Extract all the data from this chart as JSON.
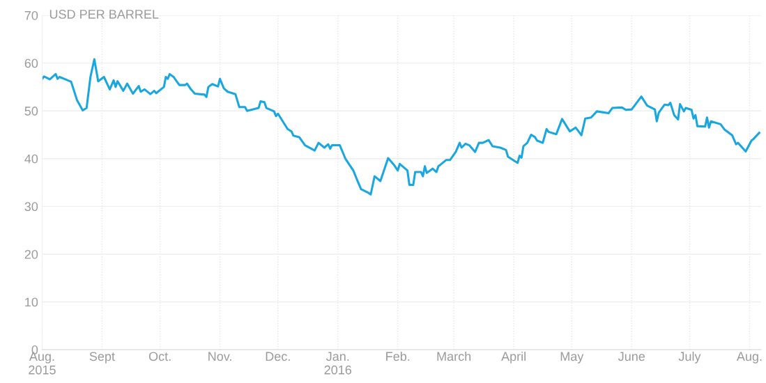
{
  "chart_data": {
    "type": "line",
    "ylabel": "USD PER BARREL",
    "x": [
      "2015-08-01",
      "2015-08-02",
      "2015-08-05",
      "2015-08-08",
      "2015-08-09",
      "2015-08-10",
      "2015-08-13",
      "2015-08-16",
      "2015-08-19",
      "2015-08-22",
      "2015-08-24",
      "2015-08-26",
      "2015-08-28",
      "2015-08-30",
      "2015-09-02",
      "2015-09-05",
      "2015-09-07",
      "2015-09-08",
      "2015-09-09",
      "2015-09-12",
      "2015-09-14",
      "2015-09-17",
      "2015-09-20",
      "2015-09-21",
      "2015-09-23",
      "2015-09-26",
      "2015-09-28",
      "2015-09-29",
      "2015-10-03",
      "2015-10-04",
      "2015-10-05",
      "2015-10-06",
      "2015-10-08",
      "2015-10-11",
      "2015-10-14",
      "2015-10-15",
      "2015-10-17",
      "2015-10-19",
      "2015-10-24",
      "2015-10-25",
      "2015-10-26",
      "2015-10-28",
      "2015-10-31",
      "2015-11-01",
      "2015-11-03",
      "2015-11-05",
      "2015-11-09",
      "2015-11-11",
      "2015-11-14",
      "2015-11-15",
      "2015-11-21",
      "2015-11-22",
      "2015-11-24",
      "2015-11-25",
      "2015-11-29",
      "2015-11-30",
      "2015-12-01",
      "2015-12-06",
      "2015-12-08",
      "2015-12-09",
      "2015-12-12",
      "2015-12-15",
      "2015-12-20",
      "2015-12-22",
      "2015-12-25",
      "2015-12-27",
      "2015-12-28",
      "2015-12-29",
      "2016-01-02",
      "2016-01-05",
      "2016-01-09",
      "2016-01-11",
      "2016-01-13",
      "2016-01-17",
      "2016-01-18",
      "2016-01-20",
      "2016-01-23",
      "2016-01-27",
      "2016-01-30",
      "2016-02-01",
      "2016-02-02",
      "2016-02-06",
      "2016-02-07",
      "2016-02-09",
      "2016-02-10",
      "2016-02-13",
      "2016-02-14",
      "2016-02-15",
      "2016-02-16",
      "2016-02-19",
      "2016-02-21",
      "2016-02-22",
      "2016-02-23",
      "2016-02-26",
      "2016-02-28",
      "2016-03-02",
      "2016-03-04",
      "2016-03-05",
      "2016-03-07",
      "2016-03-09",
      "2016-03-12",
      "2016-03-14",
      "2016-03-16",
      "2016-03-19",
      "2016-03-21",
      "2016-03-25",
      "2016-03-28",
      "2016-03-29",
      "2016-04-03",
      "2016-04-04",
      "2016-04-05",
      "2016-04-06",
      "2016-04-08",
      "2016-04-10",
      "2016-04-12",
      "2016-04-13",
      "2016-04-16",
      "2016-04-18",
      "2016-04-19",
      "2016-04-23",
      "2016-04-26",
      "2016-04-30",
      "2016-05-03",
      "2016-05-06",
      "2016-05-08",
      "2016-05-11",
      "2016-05-14",
      "2016-05-20",
      "2016-05-22",
      "2016-05-27",
      "2016-05-29",
      "2016-06-01",
      "2016-06-06",
      "2016-06-09",
      "2016-06-13",
      "2016-06-14",
      "2016-06-15",
      "2016-06-18",
      "2016-06-20",
      "2016-06-21",
      "2016-06-23",
      "2016-06-25",
      "2016-06-26",
      "2016-06-28",
      "2016-06-29",
      "2016-07-02",
      "2016-07-03",
      "2016-07-04",
      "2016-07-05",
      "2016-07-09",
      "2016-07-10",
      "2016-07-11",
      "2016-07-12",
      "2016-07-17",
      "2016-07-19",
      "2016-07-23",
      "2016-07-25",
      "2016-07-26",
      "2016-07-30",
      "2016-08-02",
      "2016-08-03",
      "2016-08-06"
    ],
    "series": [
      {
        "color": "#1aa7e0",
        "values": [
          56.7,
          57.2,
          56.6,
          57.7,
          56.7,
          57.1,
          56.6,
          56.1,
          52.3,
          50.1,
          50.6,
          57.1,
          60.8,
          56.2,
          57.1,
          54.5,
          56.4,
          55.0,
          56.2,
          54.2,
          55.7,
          53.6,
          55.2,
          54.0,
          54.5,
          53.5,
          54.2,
          53.7,
          55.0,
          57.1,
          56.7,
          57.7,
          57.1,
          55.4,
          55.4,
          55.7,
          54.5,
          53.6,
          53.4,
          52.9,
          55.0,
          55.6,
          55.1,
          56.7,
          54.7,
          54.0,
          53.5,
          50.8,
          50.8,
          50.0,
          50.6,
          52.0,
          51.8,
          50.6,
          49.9,
          48.9,
          49.4,
          46.2,
          45.7,
          44.8,
          44.5,
          42.8,
          41.7,
          43.3,
          42.3,
          43.0,
          42.1,
          42.8,
          42.8,
          39.9,
          37.5,
          35.5,
          33.6,
          32.8,
          32.5,
          36.3,
          35.3,
          40.1,
          38.7,
          37.5,
          38.9,
          37.5,
          34.5,
          34.5,
          37.2,
          37.2,
          36.3,
          38.4,
          37.0,
          37.9,
          37.2,
          38.4,
          38.7,
          39.7,
          39.7,
          41.4,
          43.3,
          42.3,
          43.1,
          42.8,
          41.4,
          43.3,
          43.3,
          43.9,
          42.6,
          42.3,
          41.8,
          40.4,
          39.1,
          40.6,
          40.2,
          42.6,
          43.3,
          45.0,
          44.5,
          43.8,
          43.3,
          46.2,
          45.6,
          45.1,
          48.3,
          45.7,
          46.5,
          44.9,
          48.4,
          48.6,
          49.9,
          49.5,
          50.6,
          50.7,
          50.2,
          50.3,
          53.0,
          51.1,
          50.3,
          47.8,
          49.6,
          51.3,
          51.2,
          51.7,
          49.1,
          48.2,
          51.4,
          49.9,
          50.6,
          50.2,
          48.4,
          49.1,
          46.8,
          46.7,
          48.6,
          46.5,
          47.8,
          47.2,
          46.1,
          44.9,
          43.0,
          43.3,
          41.5,
          43.8,
          44.1,
          45.4
        ]
      }
    ],
    "xlim": [
      "2015-08-01",
      "2016-08-07"
    ],
    "xticks": [
      {
        "value": "2015-08-01",
        "label": "Aug.\n2015"
      },
      {
        "value": "2015-09-01",
        "label": "Sept"
      },
      {
        "value": "2015-10-01",
        "label": "Oct."
      },
      {
        "value": "2015-11-01",
        "label": "Nov."
      },
      {
        "value": "2015-12-01",
        "label": "Dec."
      },
      {
        "value": "2016-01-01",
        "label": "Jan.\n2016"
      },
      {
        "value": "2016-02-01",
        "label": "Feb."
      },
      {
        "value": "2016-03-01",
        "label": "March"
      },
      {
        "value": "2016-04-01",
        "label": "April"
      },
      {
        "value": "2016-05-01",
        "label": "May"
      },
      {
        "value": "2016-06-01",
        "label": "June"
      },
      {
        "value": "2016-07-01",
        "label": "July"
      },
      {
        "value": "2016-08-01",
        "label": "Aug."
      }
    ],
    "ylim": [
      0,
      70
    ],
    "yticks": [
      0,
      10,
      20,
      30,
      40,
      50,
      60,
      70
    ],
    "grid": true,
    "marker": "none",
    "line_style": "solid",
    "legend": false
  }
}
